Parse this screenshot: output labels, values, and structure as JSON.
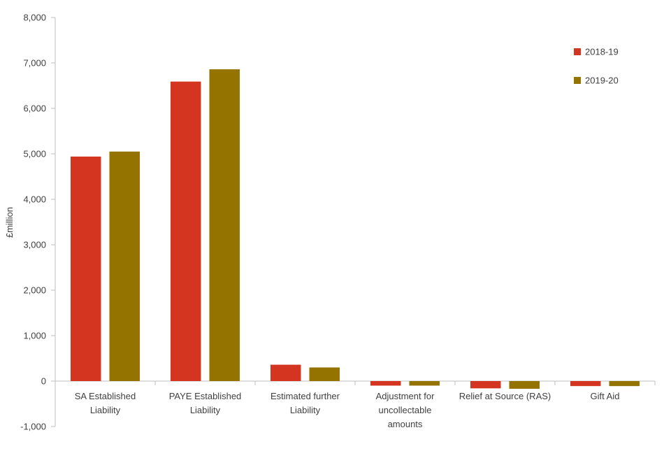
{
  "chart_data": {
    "type": "bar",
    "title": "",
    "xlabel": "",
    "ylabel": "£million",
    "ylim": [
      -1000,
      8000
    ],
    "yticks": [
      -1000,
      0,
      1000,
      2000,
      3000,
      4000,
      5000,
      6000,
      7000,
      8000
    ],
    "ytick_labels": [
      "-1,000",
      "0",
      "1,000",
      "2,000",
      "3,000",
      "4,000",
      "5,000",
      "6,000",
      "7,000",
      "8,000"
    ],
    "categories": [
      [
        "SA Established",
        "Liability"
      ],
      [
        "PAYE Established",
        "Liability"
      ],
      [
        "Estimated further",
        "Liability"
      ],
      [
        "Adjustment for",
        "uncollectable",
        "amounts"
      ],
      [
        "Relief at Source (RAS)"
      ],
      [
        "Gift Aid"
      ]
    ],
    "series": [
      {
        "name": "2018-19",
        "color": "#d33520",
        "values": [
          4940,
          6590,
          360,
          -100,
          -160,
          -110
        ]
      },
      {
        "name": "2019-20",
        "color": "#957300",
        "values": [
          5050,
          6860,
          300,
          -100,
          -170,
          -110
        ]
      }
    ],
    "grid": false,
    "legend_position": "top-right"
  }
}
